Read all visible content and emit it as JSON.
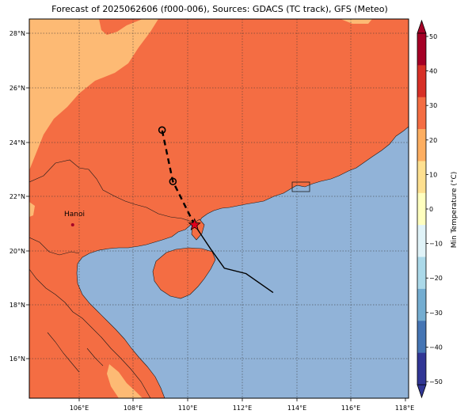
{
  "title": "Forecast of 2025062606 (f000-006), Sources: GDACS (TC track), GFS (Meteo)",
  "lon_ticks": [
    "106°E",
    "108°E",
    "110°E",
    "112°E",
    "114°E",
    "116°E",
    "118°E"
  ],
  "lat_ticks": [
    "16°N",
    "18°N",
    "20°N",
    "22°N",
    "24°N",
    "26°N",
    "28°N"
  ],
  "city_label": "Hanoi",
  "colorbar": {
    "label": "Min Temperature (°C)",
    "ticks": [
      "50",
      "40",
      "30",
      "20",
      "10",
      "0",
      "−10",
      "−20",
      "−30",
      "−40",
      "−50"
    ],
    "colors": [
      "#a50026",
      "#d73027",
      "#f46d43",
      "#fdae61",
      "#fee090",
      "#ffffbf",
      "#e0f3f8",
      "#abd9e9",
      "#74add1",
      "#4575b4",
      "#313695"
    ]
  },
  "map_colors": {
    "sea": "#91b3d8",
    "land_hot": "#f46d43",
    "land_warm": "#fdba74"
  },
  "chart_data": {
    "type": "map",
    "extent_lon": [
      104.2,
      118.2
    ],
    "extent_lat": [
      14.6,
      28.6
    ],
    "storm_position": {
      "lon": 110.3,
      "lat": 21.0
    },
    "forecast_track": [
      {
        "lon": 110.3,
        "lat": 21.0
      },
      {
        "lon": 109.5,
        "lat": 22.6
      },
      {
        "lon": 109.1,
        "lat": 24.5
      }
    ],
    "past_track": [
      {
        "lon": 110.3,
        "lat": 21.0
      },
      {
        "lon": 110.9,
        "lat": 20.1
      },
      {
        "lon": 111.4,
        "lat": 19.4
      },
      {
        "lon": 112.2,
        "lat": 19.2
      },
      {
        "lon": 113.2,
        "lat": 18.5
      }
    ],
    "city": {
      "lon": 105.8,
      "lat": 21.0
    }
  }
}
